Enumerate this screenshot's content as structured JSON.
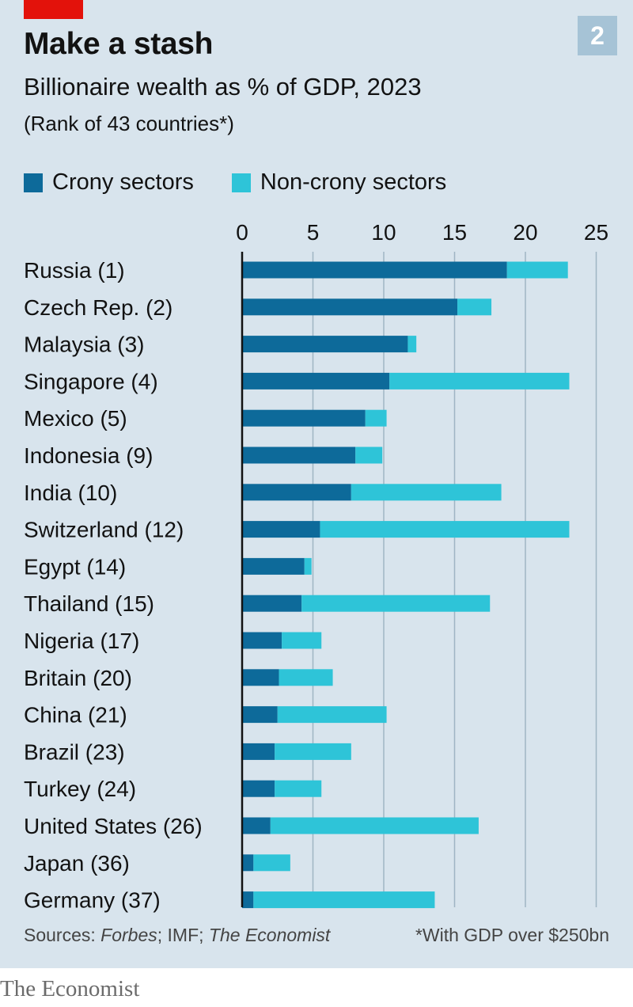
{
  "header": {
    "chart_number": "2",
    "title": "Make a stash",
    "subtitle": "Billionaire wealth as % of GDP, 2023",
    "note": "(Rank of 43 countries*)"
  },
  "legend": {
    "crony_label": "Crony sectors",
    "noncrony_label": "Non-crony sectors"
  },
  "footer": {
    "source_prefix": "Sources: ",
    "source_forbes": "Forbes",
    "source_sep1": "; IMF; ",
    "source_economist": "The Economist",
    "footnote": "*With GDP over $250bn",
    "logo": "The Economist"
  },
  "colors": {
    "crony": "#0d6a9a",
    "noncrony": "#2ec4d8",
    "grid": "#9fb5c4",
    "axis": "#121212",
    "background": "#d8e4ed"
  },
  "chart_data": {
    "type": "bar",
    "orientation": "horizontal",
    "stacked": true,
    "title": "Make a stash",
    "subtitle": "Billionaire wealth as % of GDP, 2023",
    "xlim": [
      0,
      25
    ],
    "xticks": [
      0,
      5,
      10,
      15,
      20,
      25
    ],
    "grid": true,
    "legend_position": "top-left",
    "categories": [
      "Russia (1)",
      "Czech Rep. (2)",
      "Malaysia (3)",
      "Singapore (4)",
      "Mexico (5)",
      "Indonesia (9)",
      "India (10)",
      "Switzerland (12)",
      "Egypt (14)",
      "Thailand (15)",
      "Nigeria (17)",
      "Britain (20)",
      "China (21)",
      "Brazil (23)",
      "Turkey (24)",
      "United States (26)",
      "Japan (36)",
      "Germany (37)"
    ],
    "series": [
      {
        "name": "Crony sectors",
        "values": [
          18.7,
          15.2,
          11.7,
          10.4,
          8.7,
          8.0,
          7.7,
          5.5,
          4.4,
          4.2,
          2.8,
          2.6,
          2.5,
          2.3,
          2.3,
          2.0,
          0.8,
          0.8
        ]
      },
      {
        "name": "Non-crony sectors",
        "values": [
          4.3,
          2.4,
          0.6,
          12.7,
          1.5,
          1.9,
          10.6,
          17.6,
          0.5,
          13.3,
          2.8,
          3.8,
          7.7,
          5.4,
          3.3,
          14.7,
          2.6,
          12.8
        ]
      }
    ]
  }
}
